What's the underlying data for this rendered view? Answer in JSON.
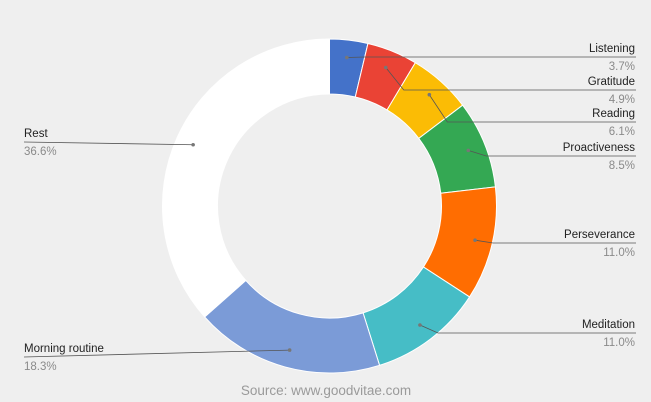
{
  "chart_data": {
    "type": "pie",
    "subtype": "donut",
    "slices": [
      {
        "label": "Listening",
        "value": 3.7,
        "display": "3.7%",
        "color": "#4472c9"
      },
      {
        "label": "Gratitude",
        "value": 4.9,
        "display": "4.9%",
        "color": "#ea4335"
      },
      {
        "label": "Reading",
        "value": 6.1,
        "display": "6.1%",
        "color": "#fbbc05"
      },
      {
        "label": "Proactiveness",
        "value": 8.5,
        "display": "8.5%",
        "color": "#34a853"
      },
      {
        "label": "Perseverance",
        "value": 11.0,
        "display": "11.0%",
        "color": "#ff6d01"
      },
      {
        "label": "Meditation",
        "value": 11.0,
        "display": "11.0%",
        "color": "#46bdc6"
      },
      {
        "label": "Morning routine",
        "value": 18.3,
        "display": "18.3%",
        "color": "#7b9bd7"
      },
      {
        "label": "Rest",
        "value": 36.6,
        "display": "36.6%",
        "color": "#ffffff"
      }
    ]
  },
  "footer": {
    "source": "Source: www.goodvitae.com"
  }
}
